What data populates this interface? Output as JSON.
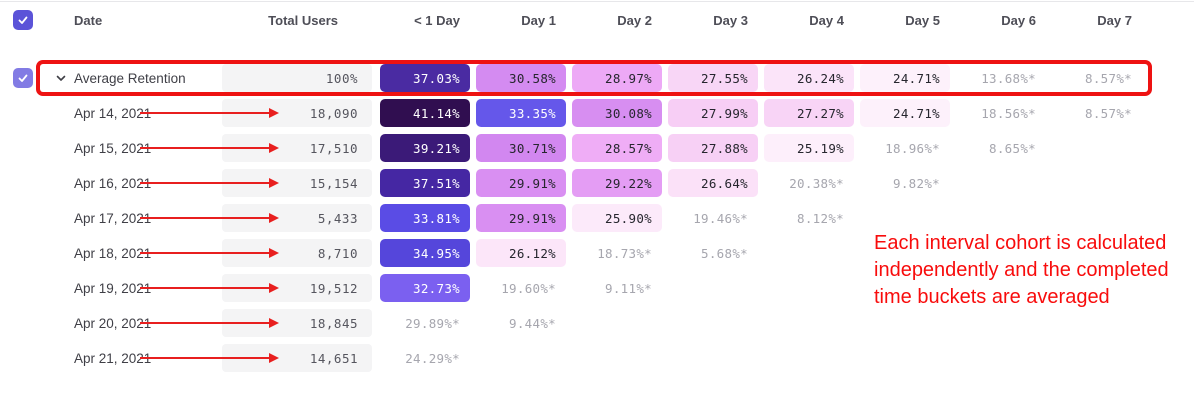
{
  "colors": {
    "accent_checkbox": "#5B53D8",
    "accent_checkbox_light": "#827BE4",
    "highlight_red": "#EE1212",
    "muted_cell_bg": "#F4F4F5"
  },
  "annotation": {
    "text": "Each interval cohort is calculated independently and the completed time buckets are averaged"
  },
  "table": {
    "columns": [
      "Date",
      "Total Users",
      "< 1 Day",
      "Day 1",
      "Day 2",
      "Day 3",
      "Day 4",
      "Day 5",
      "Day 6",
      "Day 7"
    ],
    "rows": [
      {
        "label": "Average Retention",
        "total": "100%",
        "checkbox": true,
        "expanded": true,
        "highlighted": true,
        "arrow": false,
        "cells": [
          {
            "v": "37.03%",
            "bg": "#4A2BA2",
            "fg": "#FFFFFF"
          },
          {
            "v": "30.58%",
            "bg": "#D48BF1",
            "fg": "#26262E"
          },
          {
            "v": "28.97%",
            "bg": "#EDA9F6",
            "fg": "#26262E"
          },
          {
            "v": "27.55%",
            "bg": "#F8D6F6",
            "fg": "#26262E"
          },
          {
            "v": "26.24%",
            "bg": "#FBE4F9",
            "fg": "#26262E"
          },
          {
            "v": "24.71%",
            "bg": "#FDF1FB",
            "fg": "#26262E"
          },
          {
            "v": "13.68%*",
            "bg": null,
            "fg": "#A6A6AE"
          },
          {
            "v": "8.57%*",
            "bg": null,
            "fg": "#A6A6AE"
          }
        ]
      },
      {
        "label": "Apr 14, 2021",
        "total": "18,090",
        "checkbox": false,
        "expanded": false,
        "highlighted": false,
        "arrow": true,
        "cells": [
          {
            "v": "41.14%",
            "bg": "#300E50",
            "fg": "#FFFFFF"
          },
          {
            "v": "33.35%",
            "bg": "#6557EA",
            "fg": "#FFFFFF"
          },
          {
            "v": "30.08%",
            "bg": "#D78EF1",
            "fg": "#26262E"
          },
          {
            "v": "27.99%",
            "bg": "#F7CEF5",
            "fg": "#26262E"
          },
          {
            "v": "27.27%",
            "bg": "#F8D4F6",
            "fg": "#26262E"
          },
          {
            "v": "24.71%",
            "bg": "#FDF1FB",
            "fg": "#26262E"
          },
          {
            "v": "18.56%*",
            "bg": null,
            "fg": "#A6A6AE"
          },
          {
            "v": "8.57%*",
            "bg": null,
            "fg": "#A6A6AE"
          }
        ]
      },
      {
        "label": "Apr 15, 2021",
        "total": "17,510",
        "checkbox": false,
        "expanded": false,
        "highlighted": false,
        "arrow": true,
        "cells": [
          {
            "v": "39.21%",
            "bg": "#3B1A78",
            "fg": "#FFFFFF"
          },
          {
            "v": "30.71%",
            "bg": "#D287F0",
            "fg": "#26262E"
          },
          {
            "v": "28.57%",
            "bg": "#EFADF6",
            "fg": "#26262E"
          },
          {
            "v": "27.88%",
            "bg": "#F7D0F5",
            "fg": "#26262E"
          },
          {
            "v": "25.19%",
            "bg": "#FDEFFB",
            "fg": "#26262E"
          },
          {
            "v": "18.96%*",
            "bg": null,
            "fg": "#A6A6AE"
          },
          {
            "v": "8.65%*",
            "bg": null,
            "fg": "#A6A6AE"
          }
        ]
      },
      {
        "label": "Apr 16, 2021",
        "total": "15,154",
        "checkbox": false,
        "expanded": false,
        "highlighted": false,
        "arrow": true,
        "cells": [
          {
            "v": "37.51%",
            "bg": "#4527A3",
            "fg": "#FFFFFF"
          },
          {
            "v": "29.91%",
            "bg": "#D98FF2",
            "fg": "#26262E"
          },
          {
            "v": "29.22%",
            "bg": "#E49DF4",
            "fg": "#26262E"
          },
          {
            "v": "26.64%",
            "bg": "#FBE1F8",
            "fg": "#26262E"
          },
          {
            "v": "20.38%*",
            "bg": null,
            "fg": "#A6A6AE"
          },
          {
            "v": "9.82%*",
            "bg": null,
            "fg": "#A6A6AE"
          }
        ]
      },
      {
        "label": "Apr 17, 2021",
        "total": "5,433",
        "checkbox": false,
        "expanded": false,
        "highlighted": false,
        "arrow": true,
        "cells": [
          {
            "v": "33.81%",
            "bg": "#5A4CE5",
            "fg": "#FFFFFF"
          },
          {
            "v": "29.91%",
            "bg": "#D98FF2",
            "fg": "#26262E"
          },
          {
            "v": "25.90%",
            "bg": "#FCEAFA",
            "fg": "#26262E"
          },
          {
            "v": "19.46%*",
            "bg": null,
            "fg": "#A6A6AE"
          },
          {
            "v": "8.12%*",
            "bg": null,
            "fg": "#A6A6AE"
          }
        ]
      },
      {
        "label": "Apr 18, 2021",
        "total": "8,710",
        "checkbox": false,
        "expanded": false,
        "highlighted": false,
        "arrow": true,
        "cells": [
          {
            "v": "34.95%",
            "bg": "#5546DB",
            "fg": "#FFFFFF"
          },
          {
            "v": "26.12%",
            "bg": "#FCE6F9",
            "fg": "#26262E"
          },
          {
            "v": "18.73%*",
            "bg": null,
            "fg": "#A6A6AE"
          },
          {
            "v": "5.68%*",
            "bg": null,
            "fg": "#A6A6AE"
          }
        ]
      },
      {
        "label": "Apr 19, 2021",
        "total": "19,512",
        "checkbox": false,
        "expanded": false,
        "highlighted": false,
        "arrow": true,
        "cells": [
          {
            "v": "32.73%",
            "bg": "#7B60F0",
            "fg": "#FFFFFF"
          },
          {
            "v": "19.60%*",
            "bg": null,
            "fg": "#A6A6AE"
          },
          {
            "v": "9.11%*",
            "bg": null,
            "fg": "#A6A6AE"
          }
        ]
      },
      {
        "label": "Apr 20, 2021",
        "total": "18,845",
        "checkbox": false,
        "expanded": false,
        "highlighted": false,
        "arrow": true,
        "cells": [
          {
            "v": "29.89%*",
            "bg": null,
            "fg": "#A6A6AE"
          },
          {
            "v": "9.44%*",
            "bg": null,
            "fg": "#A6A6AE"
          }
        ]
      },
      {
        "label": "Apr 21, 2021",
        "total": "14,651",
        "checkbox": false,
        "expanded": false,
        "highlighted": false,
        "arrow": true,
        "cells": [
          {
            "v": "24.29%*",
            "bg": null,
            "fg": "#A6A6AE"
          }
        ]
      }
    ]
  }
}
